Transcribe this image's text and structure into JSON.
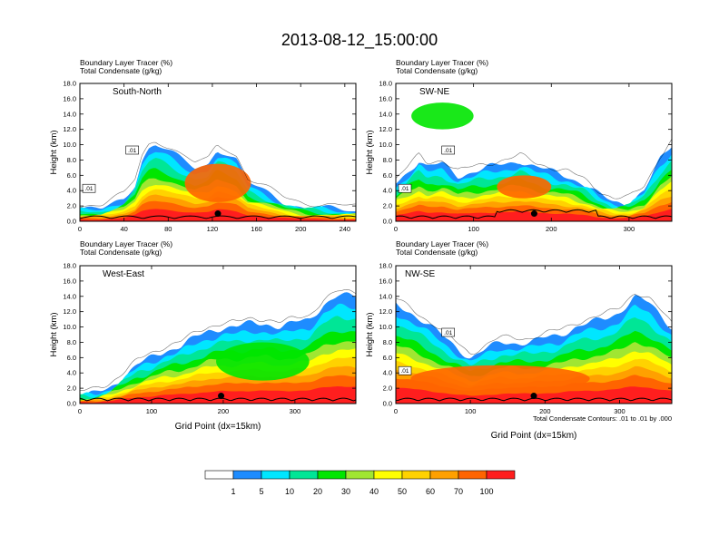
{
  "title": "2013-08-12_15:00:00",
  "colors": [
    "#ffffff",
    "#1e8cff",
    "#00e6ff",
    "#00e696",
    "#00e600",
    "#a0e632",
    "#ffff00",
    "#ffd200",
    "#ffa000",
    "#ff6400",
    "#ff1e1e"
  ],
  "colorbar": {
    "labels": [
      "1",
      "5",
      "10",
      "20",
      "30",
      "40",
      "50",
      "60",
      "70",
      "100"
    ]
  },
  "footnote": "Total Condensate Contours: .01 to .01 by .000",
  "panels": [
    {
      "top_line1": "Boundary Layer Tracer   (%)",
      "top_line2": "Total Condensate   (g/kg)",
      "label": "South-North",
      "ylabel": "Height (km)",
      "xlabel": "",
      "x_ticks": [
        "0",
        "40",
        "80",
        "120",
        "160",
        "200",
        "240"
      ],
      "y_ticks": [
        "0.0",
        "2.0",
        "4.0",
        "6.0",
        "8.0",
        "10.0",
        "12.0",
        "14.0",
        "16.0",
        "18.0"
      ],
      "contour_labels": [
        ".01",
        ".01"
      ]
    },
    {
      "top_line1": "Boundary Layer Tracer   (%)",
      "top_line2": "Total Condensate   (g/kg)",
      "label": "SW-NE",
      "ylabel": "Height (km)",
      "xlabel": "",
      "x_ticks": [
        "0",
        "100",
        "200",
        "300"
      ],
      "y_ticks": [
        "0.0",
        "2.0",
        "4.0",
        "6.0",
        "8.0",
        "10.0",
        "12.0",
        "14.0",
        "16.0",
        "18.0"
      ],
      "contour_labels": [
        ".01",
        ".01"
      ]
    },
    {
      "top_line1": "Boundary Layer Tracer   (%)",
      "top_line2": "Total Condensate   (g/kg)",
      "label": "West-East",
      "ylabel": "Height (km)",
      "xlabel": "Grid Point (dx=15km)",
      "x_ticks": [
        "0",
        "100",
        "200",
        "300"
      ],
      "y_ticks": [
        "0.0",
        "2.0",
        "4.0",
        "6.0",
        "8.0",
        "10.0",
        "12.0",
        "14.0",
        "16.0",
        "18.0"
      ],
      "contour_labels": []
    },
    {
      "top_line1": "Boundary Layer Tracer   (%)",
      "top_line2": "Total Condensate   (g/kg)",
      "label": "NW-SE",
      "ylabel": "Height (km)",
      "xlabel": "Grid Point (dx=15km)",
      "x_ticks": [
        "0",
        "100",
        "200",
        "300"
      ],
      "y_ticks": [
        "0.0",
        "2.0",
        "4.0",
        "6.0",
        "8.0",
        "10.0",
        "12.0",
        "14.0",
        "16.0",
        "18.0"
      ],
      "contour_labels": [
        ".01",
        ".01"
      ]
    }
  ],
  "chart_data": [
    {
      "type": "heatmap",
      "label": "South-North",
      "xlim": [
        0,
        250
      ],
      "ylim": [
        0,
        18
      ],
      "x_ticks": [
        0,
        40,
        80,
        120,
        160,
        200,
        240
      ],
      "y_ticks": [
        0,
        2,
        4,
        6,
        8,
        10,
        12,
        14,
        16,
        18
      ],
      "colorbar_levels": [
        1,
        5,
        10,
        20,
        30,
        40,
        50,
        60,
        70,
        100
      ],
      "tracer_top_km": [
        [
          0,
          1.5
        ],
        [
          20,
          1.5
        ],
        [
          40,
          3
        ],
        [
          50,
          5
        ],
        [
          56,
          8
        ],
        [
          62,
          9.5
        ],
        [
          68,
          10
        ],
        [
          76,
          9.5
        ],
        [
          82,
          9
        ],
        [
          92,
          8
        ],
        [
          104,
          7
        ],
        [
          116,
          7.5
        ],
        [
          124,
          9.5
        ],
        [
          132,
          9
        ],
        [
          142,
          8
        ],
        [
          152,
          5
        ],
        [
          166,
          4
        ],
        [
          186,
          2.5
        ],
        [
          204,
          1.8
        ],
        [
          224,
          1.6
        ],
        [
          250,
          1.3
        ]
      ],
      "core_regions": [
        {
          "x": [
            95,
            155
          ],
          "z": [
            2.5,
            7.5
          ],
          "level": 70
        }
      ],
      "marker": {
        "x": 125,
        "z": 1.0
      }
    },
    {
      "type": "heatmap",
      "label": "SW-NE",
      "xlim": [
        0,
        355
      ],
      "ylim": [
        0,
        18
      ],
      "x_ticks": [
        0,
        100,
        200,
        300
      ],
      "y_ticks": [
        0,
        2,
        4,
        6,
        8,
        10,
        12,
        14,
        16,
        18
      ],
      "colorbar_levels": [
        1,
        5,
        10,
        20,
        30,
        40,
        50,
        60,
        70,
        100
      ],
      "tracer_top_km": [
        [
          0,
          5
        ],
        [
          20,
          7
        ],
        [
          30,
          8
        ],
        [
          40,
          7
        ],
        [
          60,
          7.5
        ],
        [
          80,
          6
        ],
        [
          100,
          6.5
        ],
        [
          140,
          7.5
        ],
        [
          160,
          8
        ],
        [
          180,
          7
        ],
        [
          200,
          6.5
        ],
        [
          220,
          6
        ],
        [
          240,
          5
        ],
        [
          260,
          3.5
        ],
        [
          280,
          2.5
        ],
        [
          300,
          2.5
        ],
        [
          320,
          4
        ],
        [
          340,
          8
        ],
        [
          355,
          10
        ]
      ],
      "core_regions": [
        {
          "x": [
            20,
            100
          ],
          "z": [
            12,
            15.5
          ],
          "level": 20
        },
        {
          "x": [
            130,
            200
          ],
          "z": [
            3,
            6
          ],
          "level": 70
        }
      ],
      "marker": {
        "x": 178,
        "z": 1.0
      }
    },
    {
      "type": "heatmap",
      "label": "West-East",
      "xlim": [
        0,
        385
      ],
      "ylim": [
        0,
        18
      ],
      "x_ticks": [
        0,
        100,
        200,
        300
      ],
      "y_ticks": [
        0,
        2,
        4,
        6,
        8,
        10,
        12,
        14,
        16,
        18
      ],
      "colorbar_levels": [
        1,
        5,
        10,
        20,
        30,
        40,
        50,
        60,
        70,
        100
      ],
      "tracer_top_km": [
        [
          0,
          1
        ],
        [
          20,
          1.2
        ],
        [
          40,
          2
        ],
        [
          60,
          3.5
        ],
        [
          80,
          5
        ],
        [
          100,
          6
        ],
        [
          120,
          7
        ],
        [
          140,
          7.5
        ],
        [
          160,
          8.5
        ],
        [
          180,
          9.5
        ],
        [
          200,
          10
        ],
        [
          220,
          10
        ],
        [
          240,
          10.5
        ],
        [
          260,
          10.5
        ],
        [
          280,
          10
        ],
        [
          300,
          10.5
        ],
        [
          320,
          11
        ],
        [
          340,
          13
        ],
        [
          360,
          14
        ],
        [
          385,
          14
        ]
      ],
      "core_regions": [
        {
          "x": [
            190,
            320
          ],
          "z": [
            3,
            8
          ],
          "level": 20
        }
      ],
      "marker": {
        "x": 197,
        "z": 1.0
      }
    },
    {
      "type": "heatmap",
      "label": "NW-SE",
      "xlim": [
        0,
        370
      ],
      "ylim": [
        0,
        18
      ],
      "x_ticks": [
        0,
        100,
        200,
        300
      ],
      "y_ticks": [
        0,
        2,
        4,
        6,
        8,
        10,
        12,
        14,
        16,
        18
      ],
      "colorbar_levels": [
        1,
        5,
        10,
        20,
        30,
        40,
        50,
        60,
        70,
        100
      ],
      "tracer_top_km": [
        [
          0,
          13
        ],
        [
          20,
          12
        ],
        [
          40,
          10.5
        ],
        [
          60,
          9
        ],
        [
          80,
          7.5
        ],
        [
          100,
          6
        ],
        [
          120,
          7
        ],
        [
          140,
          8
        ],
        [
          160,
          8
        ],
        [
          180,
          8
        ],
        [
          200,
          8.5
        ],
        [
          220,
          9
        ],
        [
          240,
          10
        ],
        [
          260,
          10.5
        ],
        [
          280,
          11
        ],
        [
          300,
          12
        ],
        [
          320,
          14
        ],
        [
          340,
          13
        ],
        [
          370,
          10
        ]
      ],
      "core_regions": [
        {
          "x": [
            20,
            260
          ],
          "z": [
            1.5,
            5
          ],
          "level": 70
        }
      ],
      "marker": {
        "x": 185,
        "z": 1.0
      }
    }
  ]
}
